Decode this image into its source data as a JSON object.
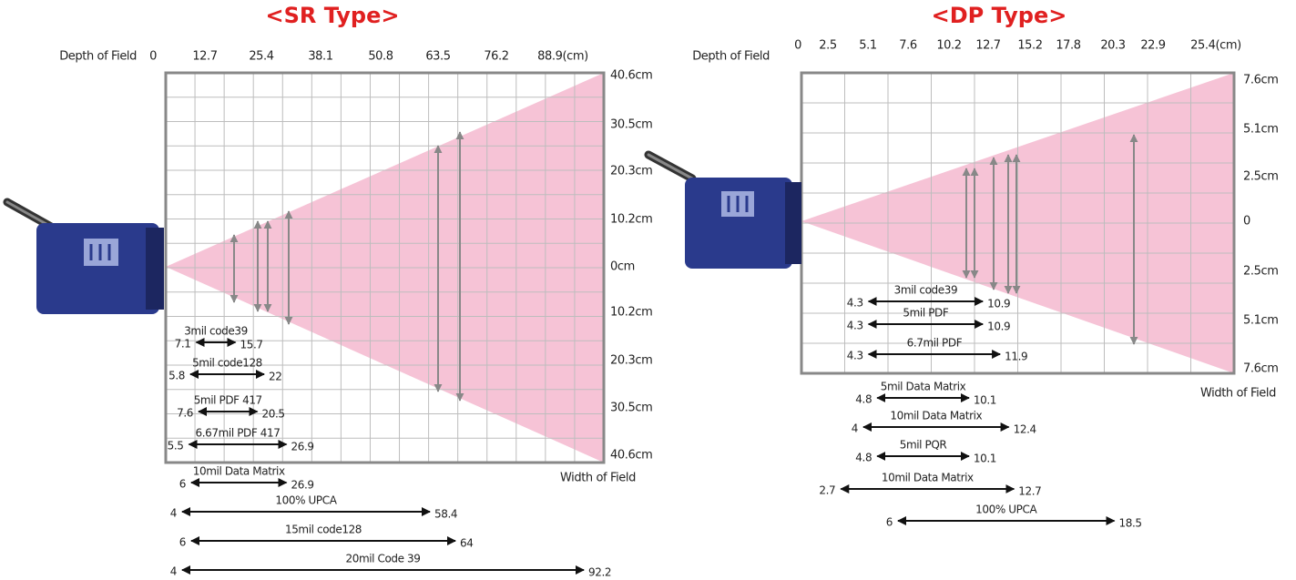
{
  "sr": {
    "title": "<SR Type>",
    "depth_label": "Depth of Field",
    "depth_ticks": [
      "0",
      "12.7",
      "25.4",
      "38.1",
      "50.8",
      "63.5",
      "76.2",
      "88.9(cm)"
    ],
    "width_ticks": [
      "40.6cm",
      "30.5cm",
      "20.3cm",
      "10.2cm",
      "0cm",
      "10.2cm",
      "20.3cm",
      "30.5cm",
      "40.6cm"
    ],
    "width_label": "Width of Field",
    "ranges": [
      {
        "name": "3mil code39",
        "min": 7.1,
        "max": 15.7
      },
      {
        "name": "5mil code128",
        "min": 5.8,
        "max": 22
      },
      {
        "name": "5mil PDF 417",
        "min": 7.6,
        "max": 20.5
      },
      {
        "name": "6.67mil PDF 417",
        "min": 5.5,
        "max": 26.9
      },
      {
        "name": "10mil Data Matrix",
        "min": 6,
        "max": 26.9
      },
      {
        "name": "100% UPCA",
        "min": 4,
        "max": 58.4
      },
      {
        "name": "15mil code128",
        "min": 6,
        "max": 64
      },
      {
        "name": "20mil Code 39",
        "min": 4,
        "max": 92.2
      }
    ]
  },
  "dp": {
    "title": "<DP Type>",
    "depth_label": "Depth of Field",
    "depth_ticks": [
      "0",
      "2.5",
      "5.1",
      "7.6",
      "10.2",
      "12.7",
      "15.2",
      "17.8",
      "20.3",
      "22.9",
      "25.4(cm)"
    ],
    "width_ticks": [
      "7.6cm",
      "5.1cm",
      "2.5cm",
      "0",
      "2.5cm",
      "5.1cm",
      "7.6cm"
    ],
    "width_label": "Width of Field",
    "ranges": [
      {
        "name": "3mil code39",
        "min": 4.3,
        "max": 10.9
      },
      {
        "name": "5mil PDF",
        "min": 4.3,
        "max": 10.9
      },
      {
        "name": "6.7mil PDF",
        "min": 4.3,
        "max": 11.9
      },
      {
        "name": "5mil Data Matrix",
        "min": 4.8,
        "max": 10.1
      },
      {
        "name": "10mil Data Matrix",
        "min": 4,
        "max": 12.4
      },
      {
        "name": "5mil PQR",
        "min": 4.8,
        "max": 10.1
      },
      {
        "name": "10mil Data Matrix",
        "min": 2.7,
        "max": 12.7
      },
      {
        "name": "100% UPCA",
        "min": 6,
        "max": 18.5
      }
    ]
  }
}
